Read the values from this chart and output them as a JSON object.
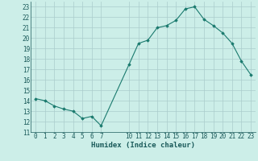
{
  "xlabel": "Humidex (Indice chaleur)",
  "x": [
    0,
    1,
    2,
    3,
    4,
    5,
    6,
    7,
    10,
    11,
    12,
    13,
    14,
    15,
    16,
    17,
    18,
    19,
    20,
    21,
    22,
    23
  ],
  "y": [
    14.2,
    14.0,
    13.5,
    13.2,
    13.0,
    12.3,
    12.5,
    11.6,
    17.5,
    19.5,
    19.8,
    21.0,
    21.2,
    21.7,
    22.8,
    23.0,
    21.8,
    21.2,
    20.5,
    19.5,
    17.8,
    16.5
  ],
  "xlim": [
    -0.5,
    23.5
  ],
  "ylim": [
    11,
    23.5
  ],
  "yticks": [
    11,
    12,
    13,
    14,
    15,
    16,
    17,
    18,
    19,
    20,
    21,
    22,
    23
  ],
  "xticks": [
    0,
    1,
    2,
    3,
    4,
    5,
    6,
    7,
    10,
    11,
    12,
    13,
    14,
    15,
    16,
    17,
    18,
    19,
    20,
    21,
    22,
    23
  ],
  "line_color": "#1a7a6e",
  "marker_color": "#1a7a6e",
  "bg_color": "#cceee8",
  "grid_color": "#aacccc",
  "font_color": "#1a5a5a",
  "label_fontsize": 6.5,
  "tick_fontsize": 5.5
}
